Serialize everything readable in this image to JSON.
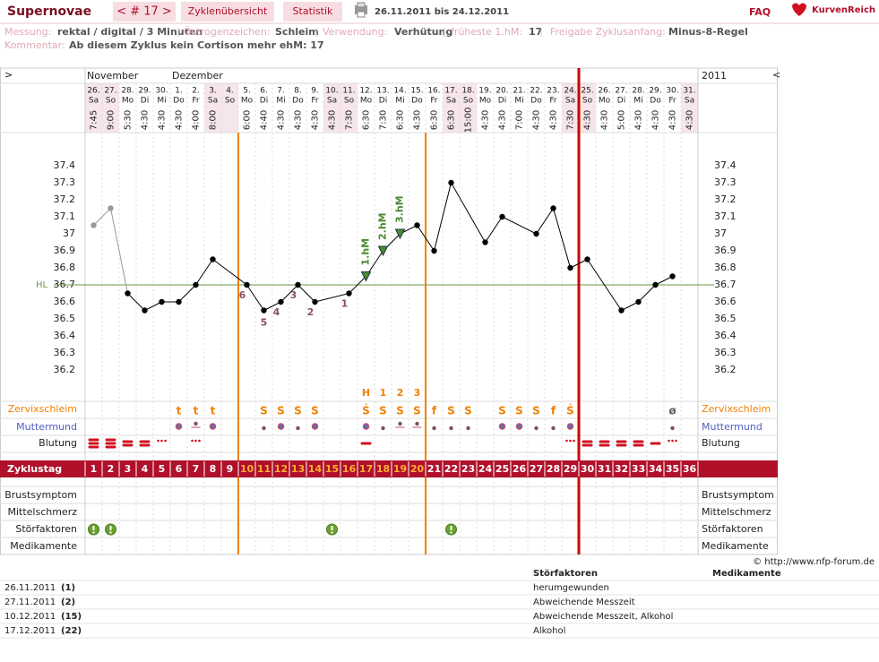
{
  "header": {
    "title": "Supernovae",
    "nav": "< # 17 >",
    "tabs": [
      "Zyklenübersicht",
      "Statistik"
    ],
    "date_range": "26.11.2011 bis 24.12.2011",
    "faq": "FAQ",
    "brand": "KurvenReich"
  },
  "info": {
    "items": [
      {
        "label": "Messung:",
        "value": "rektal / digital / 3 Minuten"
      },
      {
        "label": "Östrogenzeichen:",
        "value": "Schleim"
      },
      {
        "label": "Verwendung:",
        "value": "Verhütung"
      },
      {
        "label": "früheste 1.hM:",
        "value": "17"
      },
      {
        "label": "Freigabe Zyklusanfang:",
        "value": "Minus-8-Regel"
      }
    ],
    "comment_label": "Kommentar:",
    "comment": "Ab diesem Zyklus kein Cortison mehr ehM: 17"
  },
  "chart_data": {
    "type": "line",
    "nav_left": ">",
    "nav_right": "<",
    "year": "2011",
    "month_labels": [
      "November",
      null,
      null,
      null,
      null,
      "Dezember",
      null,
      null,
      null,
      null,
      null,
      null,
      null,
      null,
      null,
      null,
      null,
      null,
      null,
      null,
      null,
      null,
      null,
      null,
      null,
      null,
      null,
      null,
      null,
      null,
      null,
      null,
      null,
      null,
      null,
      null
    ],
    "days": [
      "26.",
      "27.",
      "28.",
      "29.",
      "30.",
      "1.",
      "2.",
      "3.",
      "4.",
      "5.",
      "6.",
      "7.",
      "8.",
      "9.",
      "10.",
      "11.",
      "12.",
      "13.",
      "14.",
      "15.",
      "16.",
      "17.",
      "18.",
      "19.",
      "20.",
      "21.",
      "22.",
      "23.",
      "24.",
      "25.",
      "26.",
      "27.",
      "28.",
      "29.",
      "30.",
      "31."
    ],
    "weekdays": [
      "Sa",
      "So",
      "Mo",
      "Di",
      "Mi",
      "Do",
      "Fr",
      "Sa",
      "So",
      "Mo",
      "Di",
      "Mi",
      "Do",
      "Fr",
      "Sa",
      "So",
      "Mo",
      "Di",
      "Mi",
      "Do",
      "Fr",
      "Sa",
      "So",
      "Mo",
      "Di",
      "Mi",
      "Do",
      "Fr",
      "Sa",
      "So",
      "Mo",
      "Di",
      "Mi",
      "Do",
      "Fr",
      "Sa"
    ],
    "times": [
      "7:45",
      "9:00",
      "5:30",
      "4:30",
      "4:30",
      "4:30",
      "4:00",
      "8:00",
      null,
      "6:00",
      "4:40",
      "4:30",
      "4:30",
      "4:30",
      "4:30",
      "7:30",
      "6:30",
      "7:30",
      "6:30",
      "4:30",
      "6:30",
      "6:30",
      "15:00",
      "4:30",
      "4:30",
      "7:00",
      "4:30",
      "4:30",
      "7:30",
      "4:30",
      "4:30",
      "5:00",
      "4:30",
      "4:30",
      "4:30",
      "4:30"
    ],
    "values": [
      37.05,
      37.15,
      36.65,
      36.55,
      36.6,
      36.6,
      36.7,
      36.85,
      null,
      36.7,
      36.55,
      36.6,
      36.7,
      36.6,
      null,
      36.65,
      36.75,
      36.9,
      37.0,
      37.05,
      36.9,
      37.3,
      null,
      36.95,
      37.1,
      null,
      37.0,
      37.15,
      36.8,
      36.85,
      null,
      36.55,
      36.6,
      36.7,
      36.75,
      null
    ],
    "color": "#000000",
    "excluded_days": [
      1,
      2
    ],
    "excluded_color": "#999999",
    "ylim": [
      36.0,
      37.6
    ],
    "yticks": [
      36.2,
      36.3,
      36.4,
      36.5,
      36.6,
      36.7,
      36.8,
      36.9,
      37,
      37.1,
      37.2,
      37.3,
      37.4
    ],
    "coverline": {
      "label": "HL",
      "value": 36.7,
      "color": "#6a9a40"
    },
    "low_labels": [
      null,
      null,
      null,
      null,
      null,
      null,
      null,
      null,
      null,
      6,
      5,
      4,
      3,
      2,
      null,
      1,
      null,
      null,
      null,
      null,
      null,
      null,
      null,
      null,
      null,
      null,
      null,
      null,
      null,
      null,
      null,
      null,
      null,
      null,
      null,
      null
    ],
    "hm_labels": [
      null,
      null,
      null,
      null,
      null,
      null,
      null,
      null,
      null,
      null,
      null,
      null,
      null,
      null,
      null,
      null,
      "1.hM",
      "2.hM",
      "3.hM",
      null,
      null,
      null,
      null,
      null,
      null,
      null,
      null,
      null,
      null,
      null,
      null,
      null,
      null,
      null,
      null,
      null
    ],
    "hm_color": "#4a8a30",
    "mucus_count": [
      null,
      null,
      null,
      null,
      null,
      null,
      null,
      null,
      null,
      null,
      null,
      null,
      null,
      null,
      null,
      null,
      "H",
      1,
      2,
      3,
      null,
      null,
      null,
      null,
      null,
      null,
      null,
      null,
      null,
      null,
      null,
      null,
      null,
      null,
      null,
      null
    ],
    "mucus": [
      null,
      null,
      null,
      null,
      null,
      "t",
      "t",
      "t",
      null,
      null,
      "S",
      "S",
      "S",
      "S",
      null,
      null,
      "Ṡ",
      "S",
      "S",
      "S",
      "f",
      "S",
      "S",
      null,
      "S",
      "S",
      "S",
      "f",
      "Ṡ",
      null,
      null,
      null,
      null,
      null,
      "ø",
      null
    ],
    "cycle_days": [
      1,
      2,
      3,
      4,
      5,
      6,
      7,
      8,
      9,
      10,
      11,
      12,
      13,
      14,
      15,
      16,
      17,
      18,
      19,
      20,
      21,
      22,
      23,
      24,
      25,
      26,
      27,
      28,
      29,
      30,
      31,
      32,
      33,
      34,
      35,
      36
    ],
    "highlight_days": [
      10,
      11,
      12,
      13,
      14,
      15,
      16,
      17,
      18,
      19,
      20
    ],
    "dividers": [
      {
        "after": 9,
        "color": "#f08000"
      },
      {
        "after": 20,
        "color": "#f08000"
      },
      {
        "after": 29,
        "color": "#cc0000"
      }
    ],
    "disturbance_days": [
      1,
      2,
      15,
      22
    ],
    "row_labels": {
      "mucus": "Zervixschleim",
      "cervix": "Muttermund",
      "bleeding": "Blutung",
      "cycle_day": "Zyklustag",
      "breast": "Brustsymptom",
      "midpain": "Mittelschmerz",
      "disturb": "Störfaktoren",
      "meds": "Medikamente"
    }
  },
  "footer": {
    "copyright": "© http://www.nfp-forum.de",
    "headers": [
      "Störfaktoren",
      "Medikamente"
    ],
    "rows": [
      [
        "26.11.2011",
        "(1)",
        "herumgewunden"
      ],
      [
        "27.11.2011",
        "(2)",
        "Abweichende Messzeit"
      ],
      [
        "10.12.2011",
        "(15)",
        "Abweichende Messzeit, Alkohol"
      ],
      [
        "17.12.2011",
        "(22)",
        "Alkohol"
      ]
    ]
  }
}
